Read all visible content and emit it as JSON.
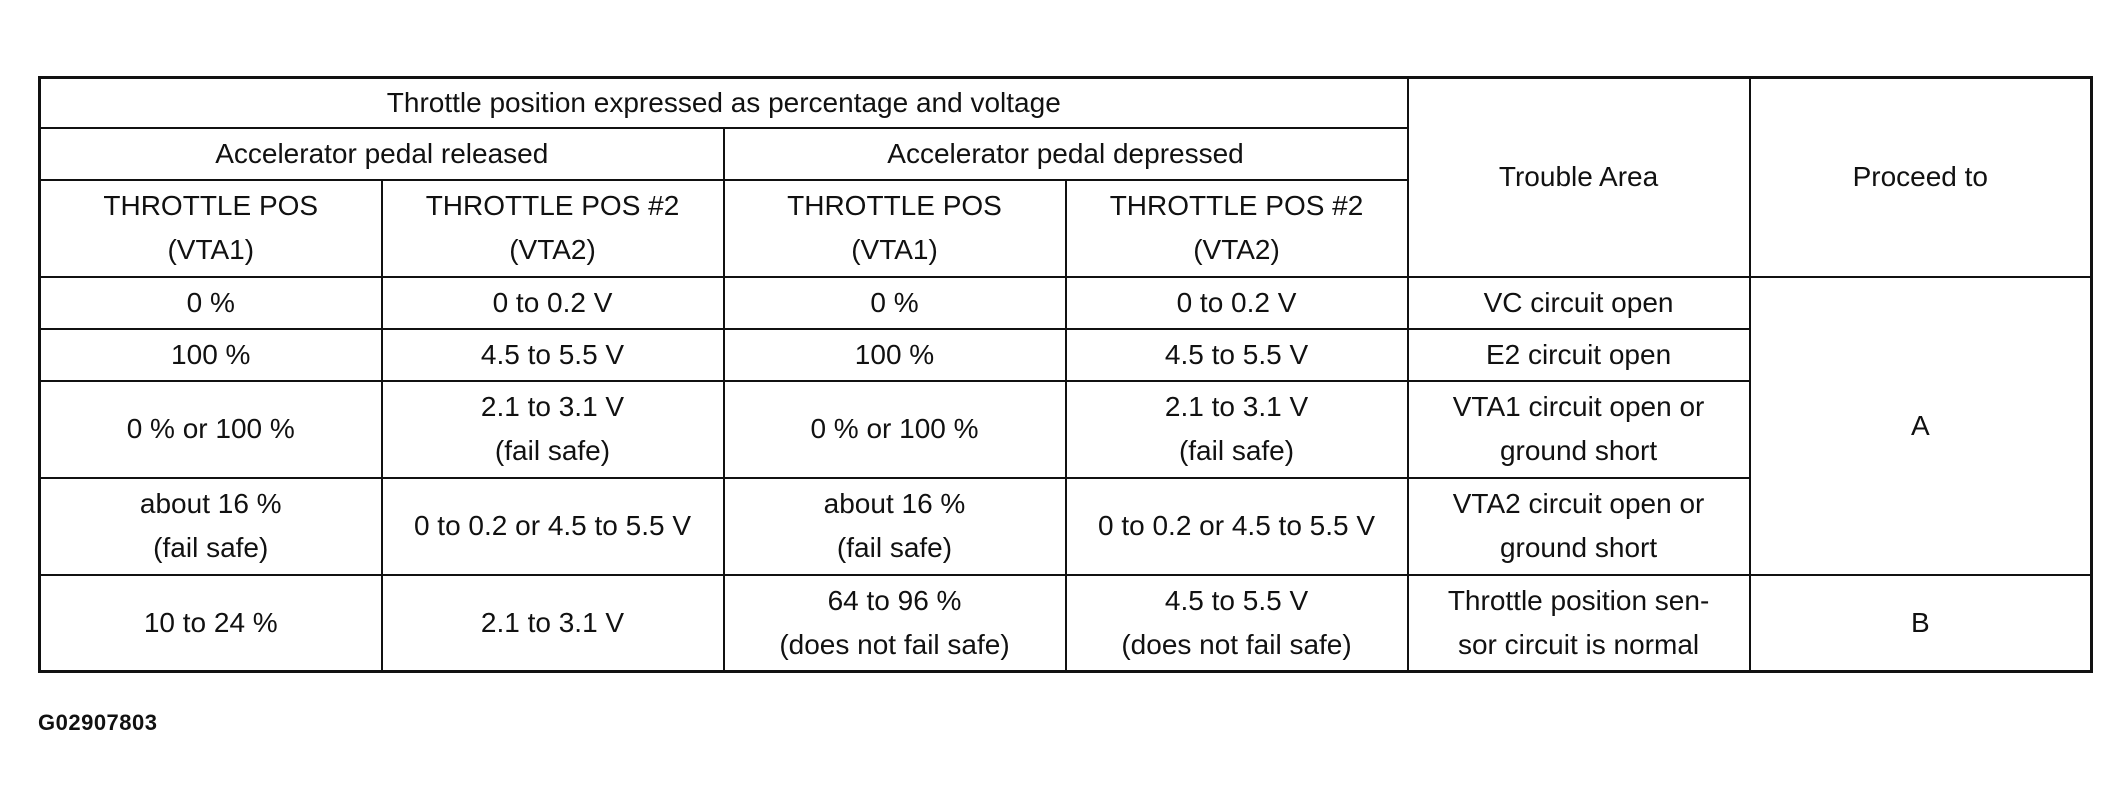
{
  "table": {
    "group_header": "Throttle position expressed as percentage and voltage",
    "released_header": "Accelerator pedal released",
    "depressed_header": "Accelerator pedal depressed",
    "trouble_area_header": "Trouble Area",
    "proceed_header": "Proceed to",
    "col_vta1_line1": "THROTTLE POS",
    "col_vta1_line2": "(VTA1)",
    "col_vta2_line1": "THROTTLE POS #2",
    "col_vta2_line2": "(VTA2)",
    "rows": [
      {
        "rel_vta1": [
          "0 %"
        ],
        "rel_vta2": [
          "0 to 0.2 V"
        ],
        "dep_vta1": [
          "0 %"
        ],
        "dep_vta2": [
          "0 to 0.2 V"
        ],
        "trouble": [
          "VC circuit open"
        ]
      },
      {
        "rel_vta1": [
          "100 %"
        ],
        "rel_vta2": [
          "4.5 to 5.5 V"
        ],
        "dep_vta1": [
          "100 %"
        ],
        "dep_vta2": [
          "4.5 to 5.5 V"
        ],
        "trouble": [
          "E2 circuit open"
        ]
      },
      {
        "rel_vta1": [
          "0 % or 100 %"
        ],
        "rel_vta2": [
          "2.1 to 3.1 V",
          "(fail safe)"
        ],
        "dep_vta1": [
          "0 % or 100 %"
        ],
        "dep_vta2": [
          "2.1 to 3.1 V",
          "(fail safe)"
        ],
        "trouble": [
          "VTA1 circuit open or",
          "ground short"
        ]
      },
      {
        "rel_vta1": [
          "about 16 %",
          "(fail safe)"
        ],
        "rel_vta2": [
          "0 to 0.2 or 4.5 to 5.5 V"
        ],
        "dep_vta1": [
          "about 16 %",
          "(fail safe)"
        ],
        "dep_vta2": [
          "0 to 0.2 or 4.5 to 5.5 V"
        ],
        "trouble": [
          "VTA2 circuit open or",
          "ground short"
        ]
      },
      {
        "rel_vta1": [
          "10 to 24 %"
        ],
        "rel_vta2": [
          "2.1 to 3.1 V"
        ],
        "dep_vta1": [
          "64 to 96 %",
          "(does not fail safe)"
        ],
        "dep_vta2": [
          "4.5 to 5.5 V",
          "(does not fail safe)"
        ],
        "trouble": [
          "Throttle position sen-",
          "sor circuit is normal"
        ]
      }
    ],
    "proceed_a": "A",
    "proceed_b": "B"
  },
  "figure_id": "G02907803"
}
